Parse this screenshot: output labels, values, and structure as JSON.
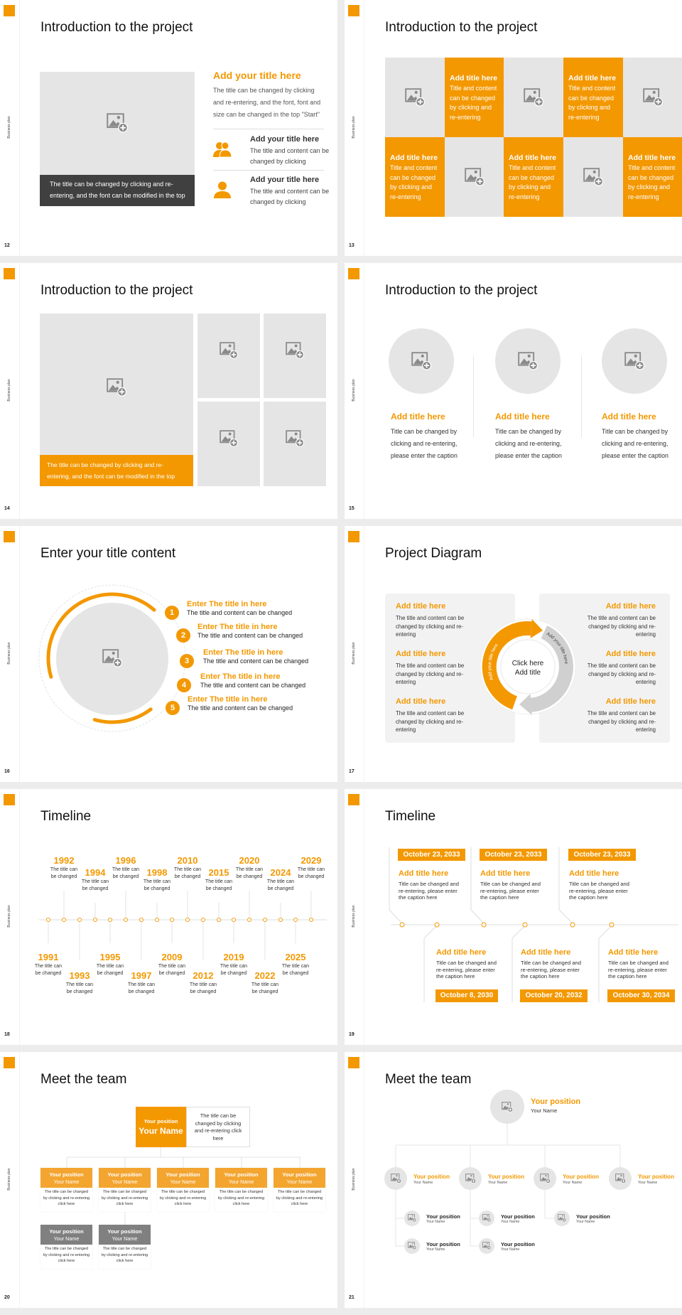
{
  "deck": {
    "side_label": "Business plan"
  },
  "colors": {
    "accent": "#f39800",
    "accent_light": "#f3a530",
    "placeholder": "#e6e5e5",
    "dark_caption": "#404040",
    "gray_header": "#808080",
    "background": "#ececec"
  },
  "slides": [
    {
      "number": "12",
      "title": "Introduction to the project",
      "caption": "The title can be changed by clicking and re-entering, and the font can be modified in the top",
      "heading": "Add your title here",
      "body": "The title can be changed by clicking and re-entering, and the font, font and size can be changed in the top \"Start\"",
      "items": [
        {
          "icon": "users-icon",
          "title": "Add your title here",
          "body": "The title and content can be changed by clicking"
        },
        {
          "icon": "user-icon",
          "title": "Add your title here",
          "body": "The title and content can be changed by clicking"
        }
      ]
    },
    {
      "number": "13",
      "title": "Introduction to the project",
      "tiles": [
        {
          "type": "image"
        },
        {
          "type": "text",
          "title": "Add title here",
          "body": "Title and content can be changed by clicking and re-entering"
        },
        {
          "type": "image"
        },
        {
          "type": "text",
          "title": "Add title here",
          "body": "Title and content can be changed by clicking and re-entering"
        },
        {
          "type": "image"
        },
        {
          "type": "text",
          "title": "Add title here",
          "body": "Title and content can be changed by clicking and re-entering"
        },
        {
          "type": "image"
        },
        {
          "type": "text",
          "title": "Add title here",
          "body": "Title and content can be changed by clicking and re-entering"
        },
        {
          "type": "image"
        },
        {
          "type": "text",
          "title": "Add title here",
          "body": "Title and content can be changed by clicking and re-entering"
        }
      ]
    },
    {
      "number": "14",
      "title": "Introduction to the project",
      "caption": "The title can be changed by clicking and re-entering, and the font can be modified in the top"
    },
    {
      "number": "15",
      "title": "Introduction to the project",
      "columns": [
        {
          "title": "Add title here",
          "body": "Title can be changed by clicking and re-entering, please enter the caption"
        },
        {
          "title": "Add title here",
          "body": "Title can be changed by clicking and re-entering, please enter the caption"
        },
        {
          "title": "Add title here",
          "body": "Title can be changed by clicking and re-entering, please enter the caption"
        }
      ]
    },
    {
      "number": "16",
      "title": "Enter your title content",
      "items": [
        {
          "num": "1",
          "title": "Enter The title in here",
          "body": "The title and content can be changed"
        },
        {
          "num": "2",
          "title": "Enter The title in here",
          "body": "The title and content can be changed"
        },
        {
          "num": "3",
          "title": "Enter The title in here",
          "body": "The title and content can be changed"
        },
        {
          "num": "4",
          "title": "Enter The title in here",
          "body": "The title and content can be changed"
        },
        {
          "num": "5",
          "title": "Enter The title in here",
          "body": "The title and content can be changed"
        }
      ]
    },
    {
      "number": "17",
      "title": "Project Diagram",
      "center": {
        "line1": "Click here",
        "line2": "Add title"
      },
      "arc_left_label": "Add your title here",
      "arc_right_label": "Add your title here",
      "left": [
        {
          "title": "Add title here",
          "body": "The title and content can be changed by clicking and re-entering"
        },
        {
          "title": "Add title here",
          "body": "The title and content can be changed by clicking and re-entering"
        },
        {
          "title": "Add title here",
          "body": "The title and content can be changed by clicking and re-entering"
        }
      ],
      "right": [
        {
          "title": "Add title here",
          "body": "The title and content can be changed by clicking and re-entering"
        },
        {
          "title": "Add title here",
          "body": "The title and content can be changed by clicking and re-entering"
        },
        {
          "title": "Add title here",
          "body": "The title and content can be changed by clicking and re-entering"
        }
      ]
    },
    {
      "number": "18",
      "title": "Timeline",
      "events": [
        {
          "year": "1991",
          "text": "The title can be changed"
        },
        {
          "year": "1992",
          "text": "The title can be changed"
        },
        {
          "year": "1993",
          "text": "The title can be changed"
        },
        {
          "year": "1994",
          "text": "The title can be changed"
        },
        {
          "year": "1995",
          "text": "The title can be changed"
        },
        {
          "year": "1996",
          "text": "The title can be changed"
        },
        {
          "year": "1997",
          "text": "The title can be changed"
        },
        {
          "year": "1998",
          "text": "The title can be changed"
        },
        {
          "year": "2009",
          "text": "The title can be changed"
        },
        {
          "year": "2010",
          "text": "The title can be changed"
        },
        {
          "year": "2012",
          "text": "The title can be changed"
        },
        {
          "year": "2015",
          "text": "The title can be changed"
        },
        {
          "year": "2019",
          "text": "The title can be changed"
        },
        {
          "year": "2020",
          "text": "The title can be changed"
        },
        {
          "year": "2022",
          "text": "The title can be changed"
        },
        {
          "year": "2024",
          "text": "The title can be changed"
        },
        {
          "year": "2025",
          "text": "The title can be changed"
        },
        {
          "year": "2029",
          "text": "The title can be changed"
        }
      ]
    },
    {
      "number": "19",
      "title": "Timeline",
      "top": [
        {
          "date": "October 23, 2033",
          "title": "Add title here",
          "body": "Title can be changed and re-entering, please enter the caption here"
        },
        {
          "date": "October 23, 2033",
          "title": "Add title here",
          "body": "Title can be changed and re-entering, please enter the caption here"
        },
        {
          "date": "October 23, 2033",
          "title": "Add title here",
          "body": "Title can be changed and re-entering, please enter the caption here"
        }
      ],
      "bottom": [
        {
          "date": "October 8, 2030",
          "title": "Add title here",
          "body": "Title can be changed and re-entering, please enter the caption here"
        },
        {
          "date": "October 20, 2032",
          "title": "Add title here",
          "body": "Title can be changed and re-entering, please enter the caption here"
        },
        {
          "date": "October 30, 2034",
          "title": "Add title here",
          "body": "Title can be changed and re-entering, please enter the caption here"
        }
      ]
    },
    {
      "number": "20",
      "title": "Meet the team",
      "lead": {
        "position": "Your position",
        "name": "Your Name",
        "desc": "The title can be changed by clicking and re-entering click here"
      },
      "members": [
        {
          "position": "Your position",
          "name": "Your Name",
          "desc": "The title can be changed by clicking and re-entering click here",
          "style": "orange"
        },
        {
          "position": "Your position",
          "name": "Your Name",
          "desc": "The title can be changed by clicking and re-entering click here",
          "style": "orange"
        },
        {
          "position": "Your position",
          "name": "Your Name",
          "desc": "The title can be changed by clicking and re-entering click here",
          "style": "orange"
        },
        {
          "position": "Your position",
          "name": "Your Name",
          "desc": "The title can be changed by clicking and re-entering click here",
          "style": "orange"
        },
        {
          "position": "Your position",
          "name": "Your Name",
          "desc": "The title can be changed by clicking and re-entering click here",
          "style": "orange"
        },
        {
          "position": "Your position",
          "name": "Your Name",
          "desc": "The title can be changed by clicking and re-entering click here",
          "style": "gray"
        },
        {
          "position": "Your position",
          "name": "Your Name",
          "desc": "The title can be changed by clicking and re-entering click here",
          "style": "gray"
        }
      ]
    },
    {
      "number": "21",
      "title": "Meet the team",
      "lead": {
        "position": "Your position",
        "name": "Your Name"
      },
      "level2": [
        {
          "position": "Your position",
          "name": "Your Name"
        },
        {
          "position": "Your position",
          "name": "Your Name"
        },
        {
          "position": "Your position",
          "name": "Your Name"
        },
        {
          "position": "Your position",
          "name": "Your Name"
        }
      ],
      "level3": [
        {
          "position": "Your position",
          "name": "Your Name"
        },
        {
          "position": "Your position",
          "name": "Your Name"
        },
        {
          "position": "Your position",
          "name": "Your Name"
        },
        {
          "position": "Your position",
          "name": "Your Name"
        },
        {
          "position": "Your position",
          "name": "Your Name"
        }
      ]
    }
  ]
}
